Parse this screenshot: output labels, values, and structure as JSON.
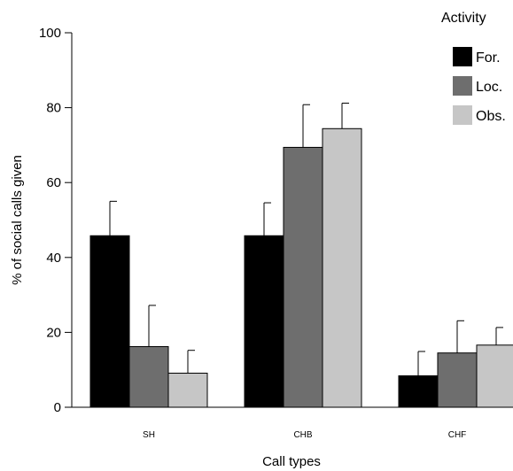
{
  "chart_data": {
    "type": "bar",
    "categories": [
      "SH",
      "CHB",
      "CHF"
    ],
    "series": [
      {
        "name": "For.",
        "values": [
          45.8,
          45.8,
          8.4
        ],
        "errors": [
          9.2,
          8.8,
          6.5
        ],
        "color": "#000000"
      },
      {
        "name": "Loc.",
        "values": [
          16.2,
          69.4,
          14.5
        ],
        "errors": [
          11.0,
          11.4,
          8.6
        ],
        "color": "#6e6e6e"
      },
      {
        "name": "Obs.",
        "values": [
          9.1,
          74.4,
          16.6
        ],
        "errors": [
          6.1,
          6.8,
          4.7
        ],
        "color": "#c6c6c6"
      }
    ],
    "xlabel": "Call types",
    "ylabel": "% of social calls given",
    "ylim": [
      0,
      100
    ],
    "yticks": [
      0,
      20,
      40,
      60,
      80,
      100
    ],
    "legend": {
      "title": "Activity",
      "placement": "top-right"
    },
    "grid": false
  }
}
